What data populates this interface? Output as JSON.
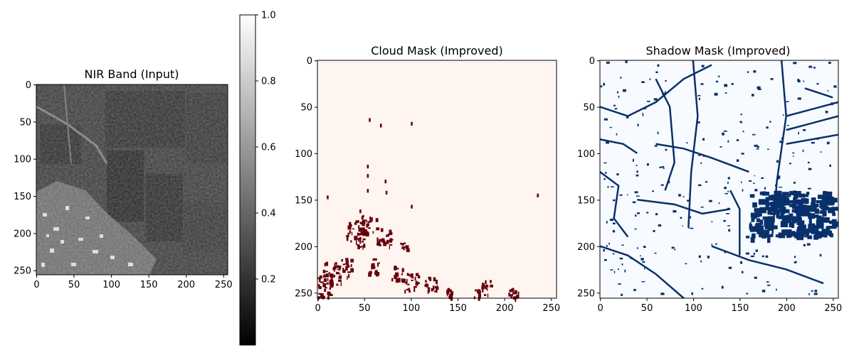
{
  "figure": {
    "background": "#ffffff"
  },
  "chart_data": [
    {
      "type": "heatmap",
      "title": "NIR Band (Input)",
      "xlim": [
        0,
        255
      ],
      "ylim": [
        255,
        0
      ],
      "x_ticks": [
        0,
        50,
        100,
        150,
        200,
        250
      ],
      "y_ticks": [
        0,
        50,
        100,
        150,
        200,
        250
      ],
      "colormap": "gray",
      "image": "grayscale satellite near-infrared scene: agricultural fields in upper right, dense bright settlement in lower left",
      "colorbar": {
        "range": [
          0.0,
          1.0
        ],
        "ticks": [
          "0.2",
          "0.4",
          "0.6",
          "0.8",
          "1.0"
        ],
        "tick_values": [
          0.2,
          0.4,
          0.6,
          0.8,
          1.0
        ]
      }
    },
    {
      "type": "heatmap",
      "title": "Cloud Mask (Improved)",
      "xlim": [
        0,
        255
      ],
      "ylim": [
        255,
        0
      ],
      "x_ticks": [
        0,
        50,
        100,
        150,
        200,
        250
      ],
      "y_ticks": [
        0,
        50,
        100,
        150,
        200,
        250
      ],
      "colormap": "Reds",
      "background_color": "#fff5f0",
      "mask_color": "#67000d",
      "image": "binary cloud mask; masked pixels scattered in lower-left quadrant"
    },
    {
      "type": "heatmap",
      "title": "Shadow Mask (Improved)",
      "xlim": [
        0,
        255
      ],
      "ylim": [
        255,
        0
      ],
      "x_ticks": [
        0,
        50,
        100,
        150,
        200,
        250
      ],
      "y_ticks": [
        0,
        50,
        100,
        150,
        200,
        250
      ],
      "colormap": "Blues",
      "background_color": "#f7fbff",
      "mask_color": "#08306b",
      "image": "binary shadow mask tracing field edges, with dense blob around x 160-250, y 140-190"
    }
  ]
}
